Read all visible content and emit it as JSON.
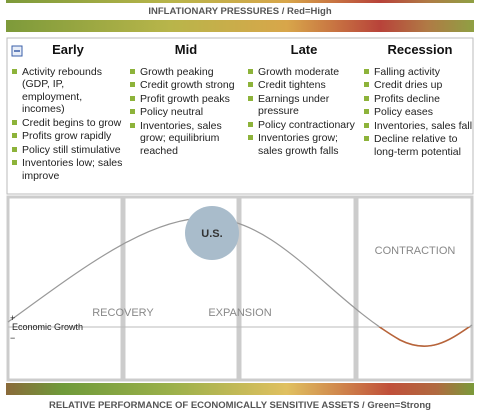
{
  "header": {
    "title": "INFLATIONARY PRESSURES / Red=High"
  },
  "columns": [
    {
      "title": "Early",
      "bullets": [
        "Activity rebounds (GDP, IP, employment, incomes)",
        "Credit begins to grow",
        "Profits grow rapidly",
        "Policy still stimulative",
        "Inventories low; sales improve"
      ]
    },
    {
      "title": "Mid",
      "bullets": [
        "Growth peaking",
        "Credit growth strong",
        "Profit growth peaks",
        "Policy neutral",
        "Inventories, sales grow; equilibrium reached"
      ]
    },
    {
      "title": "Late",
      "bullets": [
        "Growth moderate",
        "Credit tightens",
        "Earnings under pressure",
        "Policy contractionary",
        "Inventories grow; sales growth falls"
      ]
    },
    {
      "title": "Recession",
      "bullets": [
        "Falling activity",
        "Credit dries up",
        "Profits decline",
        "Policy eases",
        "Inventories, sales fall",
        "Decline relative to long-term potential"
      ]
    }
  ],
  "chart": {
    "marker": "U.S.",
    "phases": [
      "RECOVERY",
      "EXPANSION",
      "CONTRACTION"
    ],
    "plus": "+",
    "axis_label": "Economic Growth",
    "minus": "−"
  },
  "footer": {
    "title": "RELATIVE PERFORMANCE OF ECONOMICALLY SENSITIVE ASSETS / Green=Strong"
  }
}
